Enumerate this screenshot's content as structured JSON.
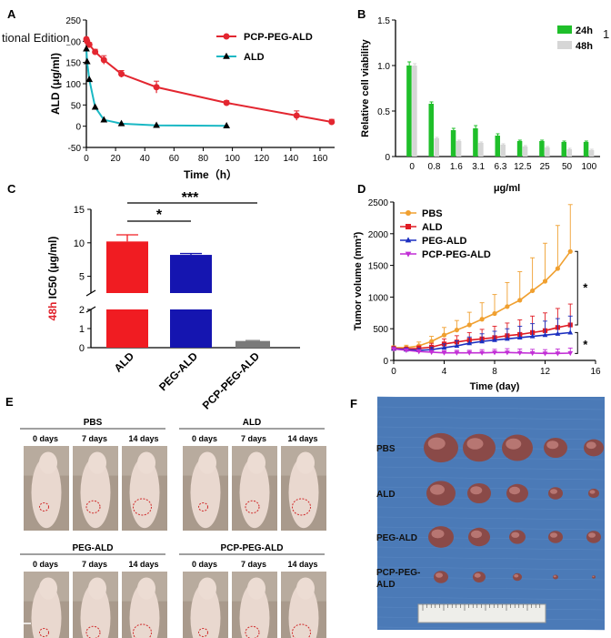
{
  "overlay_text": "tional Edition",
  "overlay_text_right": "1",
  "panels": {
    "A": {
      "letter": "A",
      "chart_data": {
        "type": "line",
        "xlabel": "Time（h）",
        "ylabel": "ALD (μg/ml)",
        "xlim": [
          0,
          170
        ],
        "ylim": [
          -50,
          250
        ],
        "xticks": [
          "0",
          "20",
          "40",
          "60",
          "80",
          "100",
          "120",
          "140",
          "160"
        ],
        "yticks": [
          "-50",
          "0",
          "50",
          "100",
          "150",
          "200",
          "250"
        ],
        "series": [
          {
            "name": "PCP-PEG-ALD",
            "color": "#e32630",
            "marker": "circle",
            "x": [
              0,
              0.5,
              2,
              6,
              12,
              24,
              48,
              96,
              144,
              168
            ],
            "y": [
              205,
              200,
              192,
              175,
              156,
              123,
              92,
              55,
              25,
              10
            ],
            "err": [
              0,
              3,
              5,
              6,
              10,
              8,
              14,
              5,
              11,
              6
            ]
          },
          {
            "name": "ALD",
            "color": "#1ab8c4",
            "marker": "triangle",
            "x": [
              0,
              0.5,
              2,
              6,
              12,
              24,
              48,
              96
            ],
            "y": [
              182,
              152,
              110,
              45,
              15,
              6,
              2,
              1
            ],
            "err": [
              0,
              0,
              0,
              0,
              0,
              0,
              0,
              0
            ]
          }
        ]
      }
    },
    "B": {
      "letter": "B",
      "chart_data": {
        "type": "bar",
        "ylabel": "Relative cell viability",
        "xlabel": "μg/ml",
        "ylim": [
          0,
          1.5
        ],
        "yticks": [
          "0",
          "0.5",
          "1.0",
          "1.5"
        ],
        "categories": [
          "0",
          "0.8",
          "1.6",
          "3.1",
          "6.3",
          "12.5",
          "25",
          "50",
          "100"
        ],
        "series": [
          {
            "name": "24h",
            "color": "#1fbf2a",
            "values": [
              1.0,
              0.58,
              0.29,
              0.31,
              0.23,
              0.17,
              0.17,
              0.16,
              0.16
            ],
            "err": [
              0.04,
              0.02,
              0.02,
              0.03,
              0.02,
              0.01,
              0.01,
              0.01,
              0.01
            ]
          },
          {
            "name": "48h",
            "color": "#d6d6d6",
            "values": [
              1.0,
              0.2,
              0.17,
              0.15,
              0.13,
              0.11,
              0.1,
              0.08,
              0.07
            ],
            "err": [
              0.02,
              0.01,
              0.01,
              0.01,
              0.01,
              0.01,
              0.01,
              0.01,
              0.01
            ]
          }
        ]
      }
    },
    "C": {
      "letter": "C",
      "chart_data": {
        "type": "bar",
        "ylabel_prefix": "48h",
        "ylabel": " IC50 (μg/ml)",
        "yticks_top": [
          "5",
          "10",
          "15"
        ],
        "yticks_bottom": [
          "0",
          "1",
          "2"
        ],
        "categories": [
          "ALD",
          "PEG-ALD",
          "PCP-PEG-ALD"
        ],
        "values": [
          10.2,
          8.2,
          0.35
        ],
        "err": [
          1.0,
          0.2,
          0.03
        ],
        "colors": [
          "#f01c22",
          "#1515b0",
          "#7a7a7a"
        ],
        "significance": [
          {
            "label": "*",
            "between": [
              "ALD",
              "PEG-ALD"
            ]
          },
          {
            "label": "***",
            "between": [
              "ALD",
              "PCP-PEG-ALD"
            ]
          }
        ]
      }
    },
    "D": {
      "letter": "D",
      "chart_data": {
        "type": "line",
        "xlabel": "Time (day)",
        "ylabel": "Tumor volume (mm³)",
        "xlim": [
          0,
          16
        ],
        "ylim": [
          0,
          2500
        ],
        "xticks": [
          "0",
          "4",
          "8",
          "12",
          "16"
        ],
        "yticks": [
          "0",
          "500",
          "1000",
          "1500",
          "2000",
          "2500"
        ],
        "series": [
          {
            "name": "PBS",
            "color": "#f0a030",
            "marker": "circle",
            "x": [
              0,
              1,
              2,
              3,
              4,
              5,
              6,
              7,
              8,
              9,
              10,
              11,
              12,
              13,
              14
            ],
            "y": [
              200,
              200,
              230,
              300,
              400,
              480,
              560,
              650,
              740,
              850,
              950,
              1100,
              1250,
              1450,
              1720
            ],
            "err": [
              30,
              40,
              60,
              80,
              120,
              150,
              200,
              260,
              300,
              380,
              450,
              520,
              600,
              680,
              740
            ]
          },
          {
            "name": "ALD",
            "color": "#e01b24",
            "marker": "square",
            "x": [
              0,
              1,
              2,
              3,
              4,
              5,
              6,
              7,
              8,
              9,
              10,
              11,
              12,
              13,
              14
            ],
            "y": [
              190,
              180,
              190,
              210,
              260,
              290,
              320,
              340,
              360,
              390,
              410,
              440,
              470,
              520,
              560
            ],
            "err": [
              20,
              30,
              40,
              60,
              80,
              100,
              120,
              150,
              180,
              200,
              230,
              260,
              280,
              300,
              330
            ]
          },
          {
            "name": "PEG-ALD",
            "color": "#1c2fc0",
            "marker": "triangle",
            "x": [
              0,
              1,
              2,
              3,
              4,
              5,
              6,
              7,
              8,
              9,
              10,
              11,
              12,
              13,
              14
            ],
            "y": [
              185,
              170,
              160,
              170,
              200,
              230,
              270,
              300,
              320,
              340,
              360,
              380,
              400,
              420,
              440
            ],
            "err": [
              20,
              25,
              30,
              40,
              60,
              80,
              100,
              120,
              140,
              160,
              180,
              200,
              220,
              240,
              260
            ]
          },
          {
            "name": "PCP-PEG-ALD",
            "color": "#c22fd6",
            "marker": "triangle-down",
            "x": [
              0,
              1,
              2,
              3,
              4,
              5,
              6,
              7,
              8,
              9,
              10,
              11,
              12,
              13,
              14
            ],
            "y": [
              180,
              160,
              140,
              130,
              120,
              120,
              120,
              120,
              125,
              125,
              120,
              115,
              110,
              110,
              115
            ],
            "err": [
              20,
              25,
              30,
              30,
              35,
              40,
              40,
              50,
              50,
              60,
              60,
              60,
              60,
              70,
              80
            ]
          }
        ],
        "significance": [
          "*",
          "*"
        ]
      }
    },
    "E": {
      "letter": "E",
      "groups": [
        {
          "title": "PBS",
          "days": [
            "0 days",
            "7 days",
            "14 days"
          ]
        },
        {
          "title": "ALD",
          "days": [
            "0 days",
            "7 days",
            "14 days"
          ]
        },
        {
          "title": "PEG-ALD",
          "days": [
            "0 days",
            "7 days",
            "14 days"
          ]
        },
        {
          "title": "PCP-PEG-ALD",
          "days": [
            "0 days",
            "7 days",
            "14 days"
          ]
        }
      ]
    },
    "F": {
      "letter": "F",
      "rows": [
        "PBS",
        "ALD",
        "PEG-ALD",
        "PCP-PEG-\nALD"
      ],
      "tumor_counts": [
        5,
        5,
        5,
        5
      ]
    }
  }
}
